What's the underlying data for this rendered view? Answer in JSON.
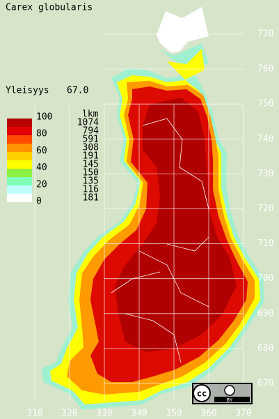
{
  "title": "Carex globularis",
  "frequency": {
    "label": "Yleisyys",
    "value": "67.0"
  },
  "legend": {
    "scale_labels": [
      "100",
      "80",
      "60",
      "40",
      "20",
      "0"
    ],
    "count_header": "lkm",
    "counts": [
      "1074",
      "794",
      "591",
      "308",
      "191",
      "145",
      "150",
      "135",
      "116",
      "181"
    ],
    "colors": [
      "#b80000",
      "#e00000",
      "#ff4a00",
      "#ff9400",
      "#ffd000",
      "#ffff00",
      "#8cf040",
      "#80ffb8",
      "#c0ffff",
      "#ffffff"
    ]
  },
  "map": {
    "yticks": [
      770,
      760,
      750,
      740,
      730,
      720,
      710,
      700,
      690,
      680,
      670
    ],
    "xticks": [
      310,
      320,
      330,
      340,
      350,
      360,
      370
    ]
  },
  "license": {
    "cc": "cc",
    "by": "BY"
  }
}
